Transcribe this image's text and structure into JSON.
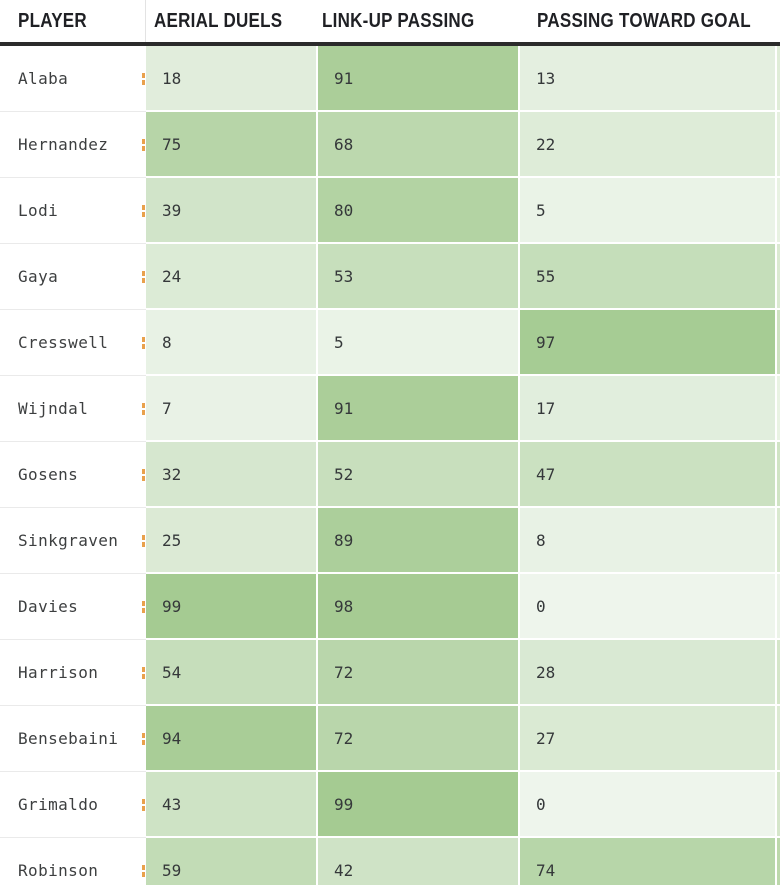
{
  "chart_data": {
    "type": "heatmap",
    "title": "",
    "columns": [
      "PLAYER",
      "AERIAL DUELS",
      "LINK-UP PASSING",
      "PASSING TOWARD GOAL"
    ],
    "rows": [
      {
        "player": "Alaba",
        "values": [
          18,
          91,
          13
        ]
      },
      {
        "player": "Hernandez",
        "values": [
          75,
          68,
          22
        ]
      },
      {
        "player": "Lodi",
        "values": [
          39,
          80,
          5
        ]
      },
      {
        "player": "Gaya",
        "values": [
          24,
          53,
          55
        ]
      },
      {
        "player": "Cresswell",
        "values": [
          8,
          5,
          97
        ]
      },
      {
        "player": "Wijndal",
        "values": [
          7,
          91,
          17
        ]
      },
      {
        "player": "Gosens",
        "values": [
          32,
          52,
          47
        ]
      },
      {
        "player": "Sinkgraven",
        "values": [
          25,
          89,
          8
        ]
      },
      {
        "player": "Davies",
        "values": [
          99,
          98,
          0
        ]
      },
      {
        "player": "Harrison",
        "values": [
          54,
          72,
          28
        ]
      },
      {
        "player": "Bensebaini",
        "values": [
          94,
          72,
          27
        ]
      },
      {
        "player": "Grimaldo",
        "values": [
          43,
          99,
          0
        ]
      },
      {
        "player": "Robinson",
        "values": [
          59,
          42,
          74
        ]
      }
    ],
    "value_range": [
      0,
      99
    ],
    "color_scale": {
      "low": "#eef5ec",
      "high": "#a5cb92"
    },
    "legend": "none",
    "grid": "white 2px gaps between cells"
  },
  "decorations": {
    "header_text_color": "#1f2024",
    "header_border_color": "#2b2b2b",
    "row_separator_color": "#eaeaea",
    "accent_fragment_color": "#e9a14c",
    "edge_strip_colors": [
      "#e0edd8",
      "#e6f0df",
      "#e8f2e2",
      "#dbead1",
      "#cee2c1",
      "#e9f3e3",
      "#d0e4c4",
      "#d9e9cf",
      "#ebf3e7",
      "#d5e6c9",
      "#dcead2",
      "#d5e6ca",
      "#bcd8ab"
    ]
  }
}
